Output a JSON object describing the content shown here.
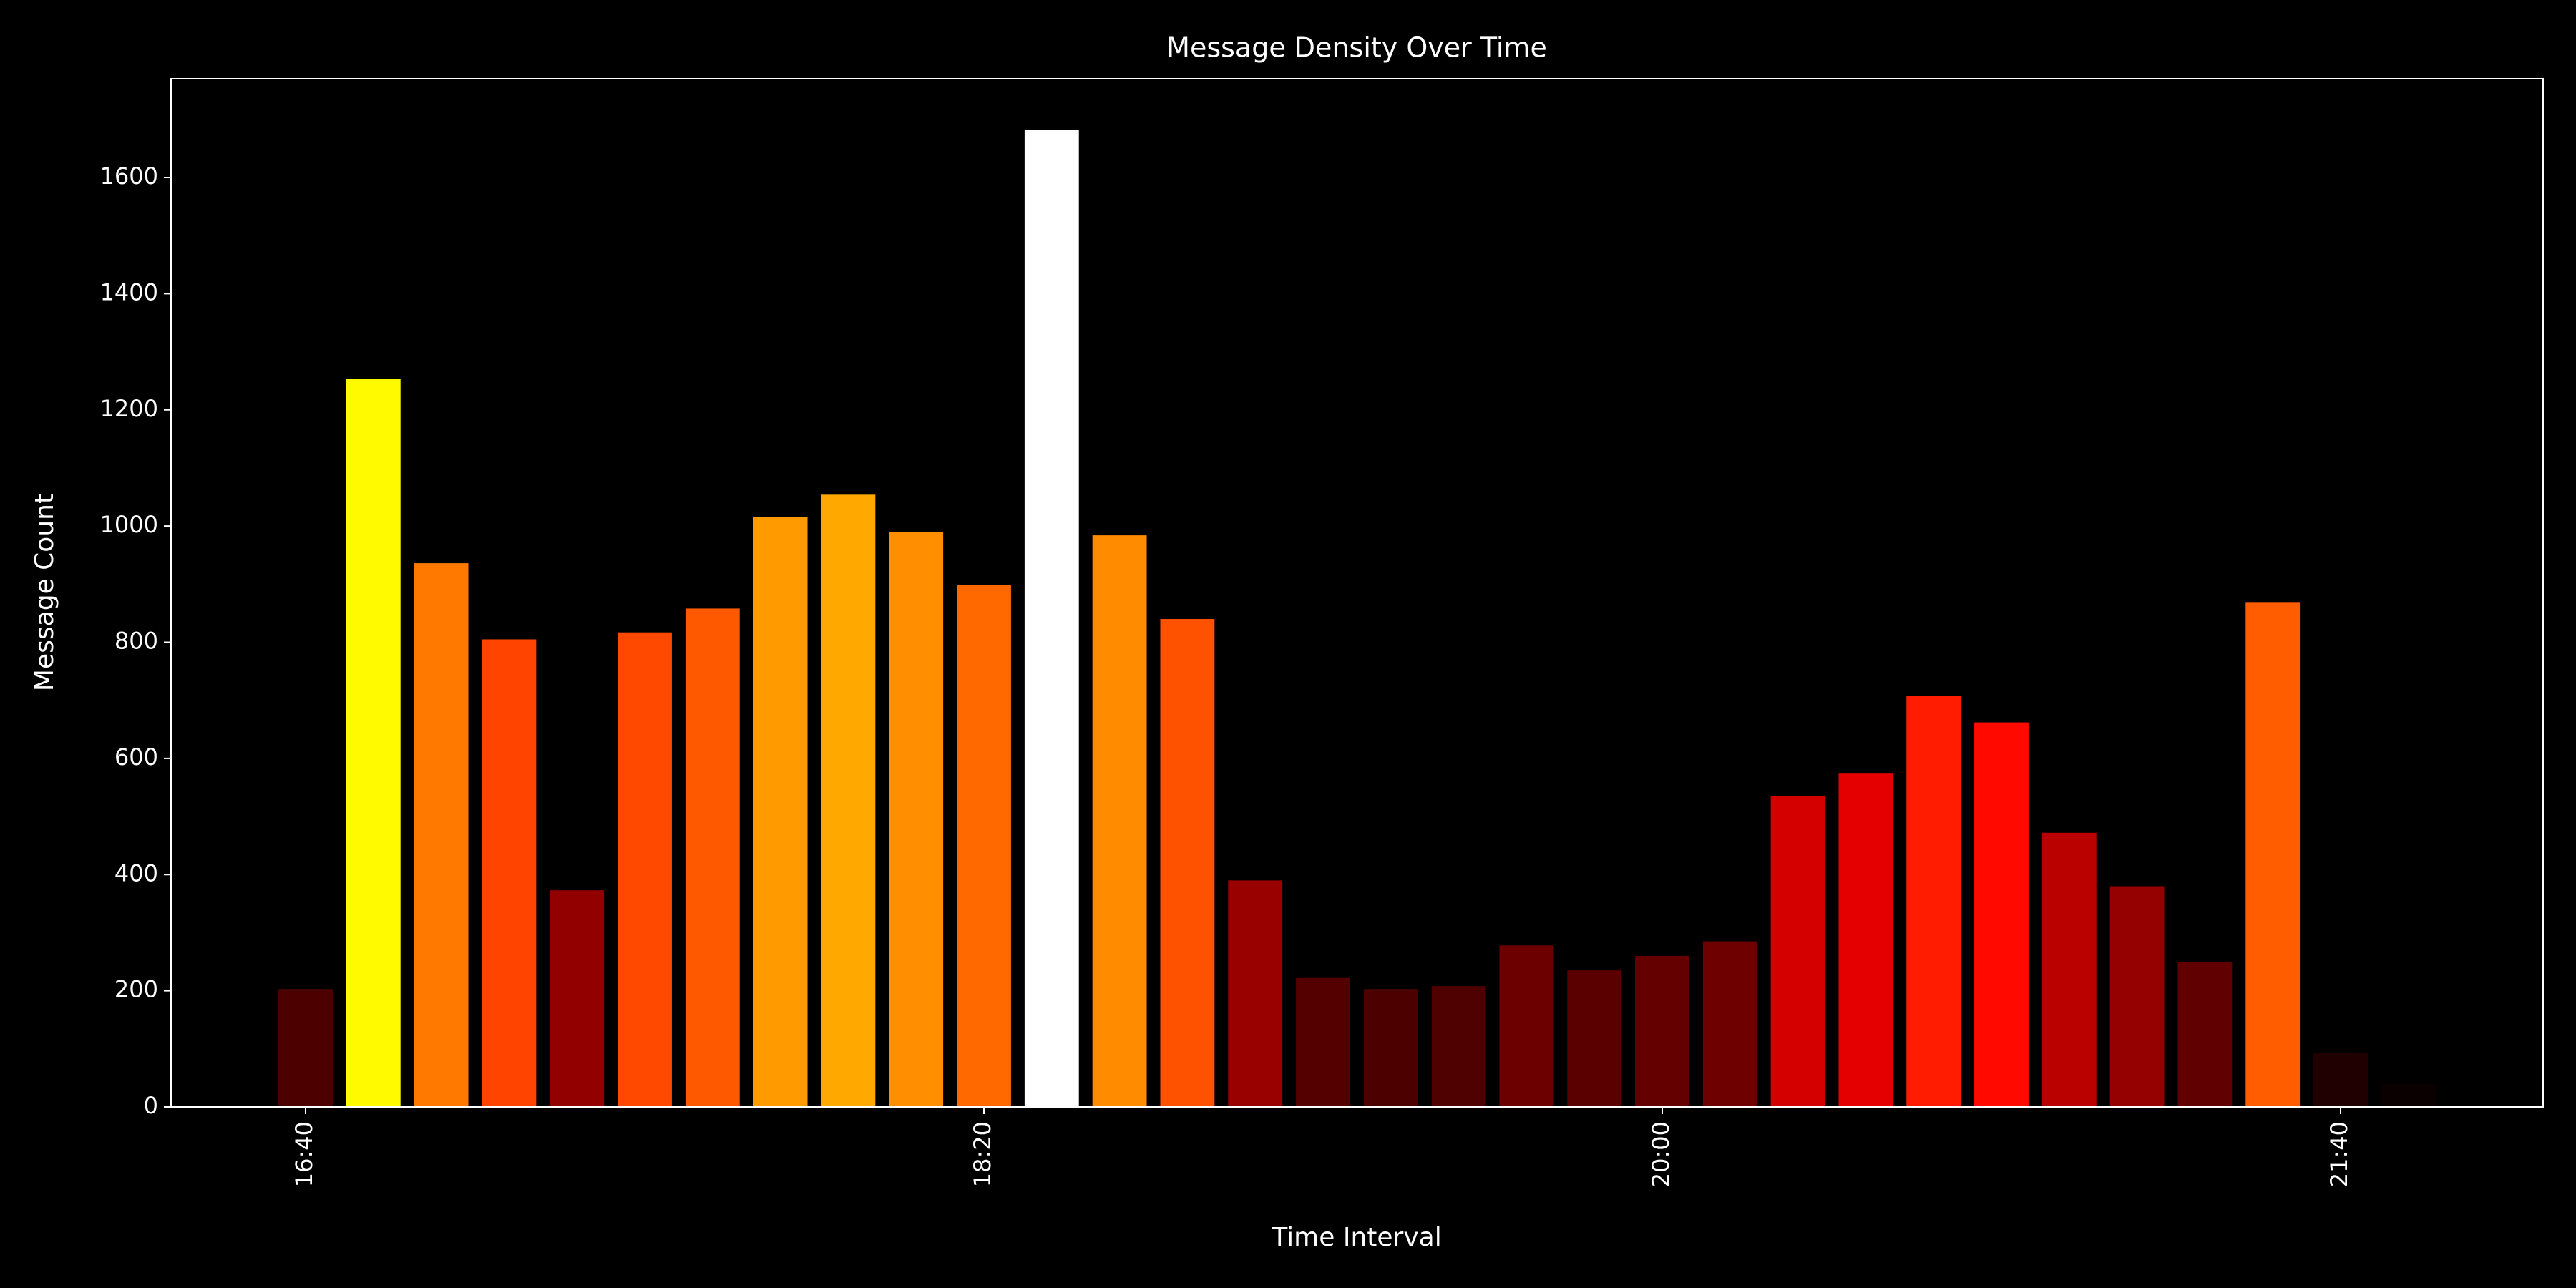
{
  "chart_data": {
    "type": "bar",
    "title": "Message Density Over Time",
    "x_label": "Time Interval",
    "y_label": "Message Count",
    "categories": [
      "16:40",
      null,
      null,
      null,
      null,
      null,
      null,
      null,
      null,
      null,
      "18:20",
      null,
      null,
      null,
      null,
      null,
      null,
      null,
      null,
      null,
      "20:00",
      null,
      null,
      null,
      null,
      null,
      null,
      null,
      null,
      null,
      "21:40",
      null
    ],
    "values": [
      203,
      1253,
      936,
      805,
      373,
      817,
      858,
      1016,
      1054,
      990,
      898,
      1682,
      984,
      840,
      390,
      222,
      203,
      208,
      278,
      235,
      260,
      285,
      535,
      575,
      708,
      662,
      472,
      380,
      250,
      868,
      93,
      40
    ],
    "colormap": "hot",
    "ylim": [
      0,
      1770
    ],
    "yticks": [
      0,
      200,
      400,
      600,
      800,
      1000,
      1200,
      1400,
      1600
    ],
    "grid": false
  }
}
